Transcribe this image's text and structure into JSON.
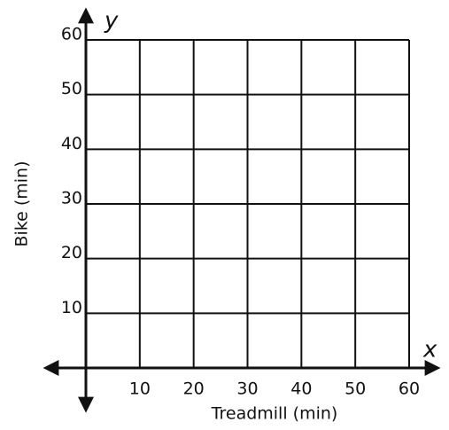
{
  "chart_data": {
    "type": "scatter",
    "xlabel": "Treadmill (min)",
    "ylabel": "Bike (min)",
    "x_axis_name": "x",
    "y_axis_name": "y",
    "xlim": [
      0,
      60
    ],
    "ylim": [
      0,
      60
    ],
    "xticks": [
      10,
      20,
      30,
      40,
      50,
      60
    ],
    "yticks": [
      10,
      20,
      30,
      40,
      50,
      60
    ],
    "grid": true
  }
}
